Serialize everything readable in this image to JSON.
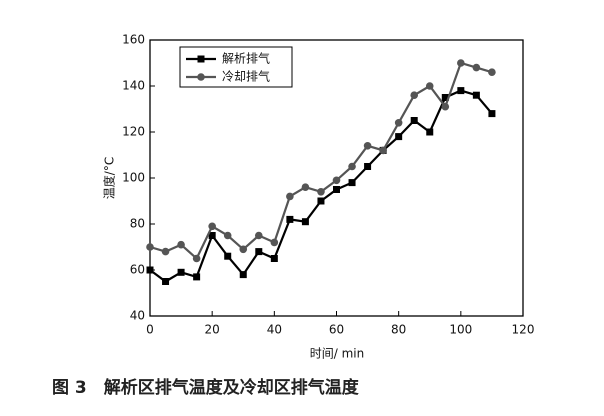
{
  "chart_data": {
    "type": "line",
    "caption": "图 3　解析区排气温度及冷却区排气温度",
    "xlabel": "时间/ min",
    "ylabel": "温度/°C",
    "x": [
      0,
      5,
      10,
      15,
      20,
      25,
      30,
      35,
      40,
      45,
      50,
      55,
      60,
      65,
      70,
      75,
      80,
      85,
      90,
      95,
      100,
      105,
      110
    ],
    "series": [
      {
        "name": "解析排气",
        "color": "#000000",
        "marker": "square",
        "values": [
          60,
          55,
          59,
          57,
          75,
          66,
          58,
          68,
          65,
          82,
          81,
          90,
          95,
          98,
          105,
          112,
          118,
          125,
          120,
          135,
          138,
          136,
          128
        ]
      },
      {
        "name": "冷却排气",
        "color": "#555555",
        "marker": "circle",
        "values": [
          70,
          68,
          71,
          65,
          79,
          75,
          69,
          75,
          72,
          92,
          96,
          94,
          99,
          105,
          114,
          112,
          124,
          136,
          140,
          131,
          150,
          148,
          146
        ]
      }
    ],
    "xlim": [
      0,
      120
    ],
    "xticks": [
      0,
      20,
      40,
      60,
      80,
      100,
      120
    ],
    "ylim": [
      40,
      160
    ],
    "yticks": [
      40,
      60,
      80,
      100,
      120,
      140,
      160
    ],
    "legend": "upper left"
  }
}
